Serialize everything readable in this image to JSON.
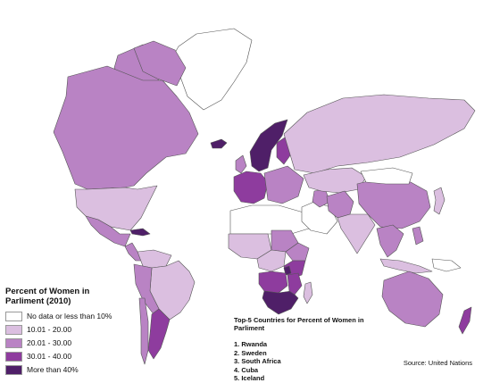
{
  "legend": {
    "title": "Percent of Women in Parliment (2010)",
    "items": [
      {
        "label": "No data or less than 10%",
        "color": "#ffffff"
      },
      {
        "label": "10.01 - 20.00",
        "color": "#dbbfe0"
      },
      {
        "label": "20.01 - 30.00",
        "color": "#b983c4"
      },
      {
        "label": "30.01 - 40.00",
        "color": "#8e3c9e"
      },
      {
        "label": "More than 40%",
        "color": "#4f1f68"
      }
    ]
  },
  "top5": {
    "title": "Top-5 Countries for Percent of Women in Parliment",
    "items": [
      "1. Rwanda",
      "2. Sweden",
      "3. South Africa",
      "4. Cuba",
      "5. Iceland"
    ]
  },
  "source": "Source: United Nations",
  "regions": [
    {
      "name": "greenland",
      "tier": 0
    },
    {
      "name": "alaska",
      "tier": 2
    },
    {
      "name": "canada",
      "tier": 2
    },
    {
      "name": "canada-islands",
      "tier": 2
    },
    {
      "name": "usa",
      "tier": 1
    },
    {
      "name": "mexico",
      "tier": 2
    },
    {
      "name": "central-america",
      "tier": 2
    },
    {
      "name": "cuba",
      "tier": 4
    },
    {
      "name": "colombia-venezuela",
      "tier": 1
    },
    {
      "name": "brazil",
      "tier": 1
    },
    {
      "name": "peru-bolivia",
      "tier": 2
    },
    {
      "name": "argentina",
      "tier": 3
    },
    {
      "name": "chile",
      "tier": 2
    },
    {
      "name": "iceland",
      "tier": 4
    },
    {
      "name": "scandinavia",
      "tier": 4
    },
    {
      "name": "finland",
      "tier": 3
    },
    {
      "name": "western-europe",
      "tier": 3
    },
    {
      "name": "uk",
      "tier": 2
    },
    {
      "name": "eastern-europe",
      "tier": 2
    },
    {
      "name": "russia",
      "tier": 1
    },
    {
      "name": "north-africa",
      "tier": 0
    },
    {
      "name": "west-africa",
      "tier": 1
    },
    {
      "name": "sudan",
      "tier": 2
    },
    {
      "name": "ethiopia",
      "tier": 2
    },
    {
      "name": "central-africa",
      "tier": 1
    },
    {
      "name": "east-africa",
      "tier": 3
    },
    {
      "name": "rwanda",
      "tier": 4
    },
    {
      "name": "angola-zambia",
      "tier": 3
    },
    {
      "name": "south-africa",
      "tier": 4
    },
    {
      "name": "mozambique",
      "tier": 3
    },
    {
      "name": "madagascar",
      "tier": 1
    },
    {
      "name": "middle-east",
      "tier": 0
    },
    {
      "name": "iraq",
      "tier": 2
    },
    {
      "name": "kazakhstan-central-asia",
      "tier": 1
    },
    {
      "name": "afghanistan-pakistan",
      "tier": 2
    },
    {
      "name": "india",
      "tier": 1
    },
    {
      "name": "china",
      "tier": 2
    },
    {
      "name": "mongolia",
      "tier": 0
    },
    {
      "name": "japan",
      "tier": 1
    },
    {
      "name": "southeast-asia",
      "tier": 2
    },
    {
      "name": "indonesia",
      "tier": 1
    },
    {
      "name": "philippines",
      "tier": 2
    },
    {
      "name": "australia",
      "tier": 2
    },
    {
      "name": "new-zealand",
      "tier": 3
    },
    {
      "name": "new-guinea",
      "tier": 0
    }
  ]
}
